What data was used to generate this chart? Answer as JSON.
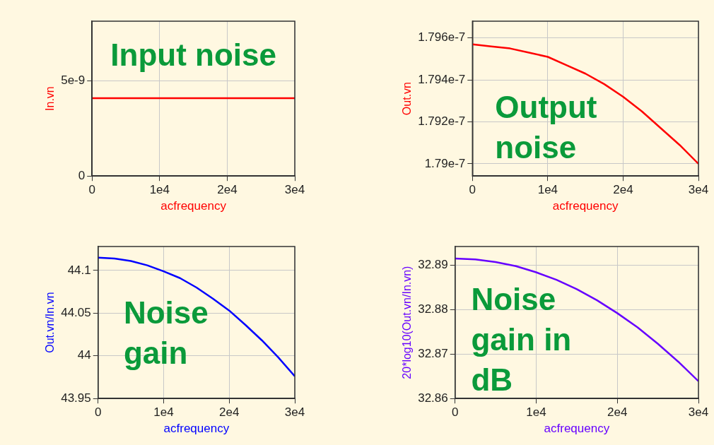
{
  "chart_data": [
    {
      "type": "line",
      "xlabel": "acfrequency",
      "ylabel": "In.vn",
      "annotations": [
        "Input noise"
      ],
      "x": [
        0,
        30000
      ],
      "series": [
        {
          "color": "#ff0000",
          "values": [
            4.1e-09,
            4.1e-09
          ]
        }
      ],
      "xlim": [
        0,
        30000
      ],
      "xticks": [
        {
          "value": 0,
          "label": "0"
        },
        {
          "value": 10000,
          "label": "1e4"
        },
        {
          "value": 20000,
          "label": "2e4"
        },
        {
          "value": 30000,
          "label": "3e4"
        }
      ],
      "ylim": [
        0,
        8.15e-09
      ],
      "yticks": [
        0,
        {
          "value": 5e-09,
          "label": "5e-9"
        }
      ],
      "grid": true,
      "marker": "none"
    },
    {
      "type": "line",
      "xlabel": "acfrequency",
      "ylabel": "Out.vn",
      "annotations": [
        "Output noise"
      ],
      "x": [
        0,
        2500,
        5000,
        7500,
        10000,
        12500,
        15000,
        17500,
        20000,
        22500,
        25000,
        27500,
        30000
      ],
      "series": [
        {
          "color": "#ff0000",
          "values": [
            1.7957e-07,
            1.7956e-07,
            1.7955e-07,
            1.7953e-07,
            1.7951e-07,
            1.7947e-07,
            1.7943e-07,
            1.7938e-07,
            1.7932e-07,
            1.7925e-07,
            1.7917e-07,
            1.7909e-07,
            1.79e-07
          ]
        }
      ],
      "xlim": [
        0,
        30000
      ],
      "xticks": [
        {
          "value": 0,
          "label": "0"
        },
        {
          "value": 10000,
          "label": "1e4"
        },
        {
          "value": 20000,
          "label": "2e4"
        },
        {
          "value": 30000,
          "label": "3e4"
        }
      ],
      "ylim": [
        1.78942e-07,
        1.7968e-07
      ],
      "yticks": [
        {
          "value": 1.79e-07,
          "label": "1.79e-7"
        },
        {
          "value": 1.792e-07,
          "label": "1.792e-7"
        },
        {
          "value": 1.794e-07,
          "label": "1.794e-7"
        },
        {
          "value": 1.796e-07,
          "label": "1.796e-7"
        }
      ],
      "grid": true,
      "marker": "none"
    },
    {
      "type": "line",
      "xlabel": "acfrequency",
      "ylabel": "Out.vn/In.vn",
      "annotations": [
        "Noise gain"
      ],
      "x": [
        0,
        2500,
        5000,
        7500,
        10000,
        12500,
        15000,
        17500,
        20000,
        22500,
        25000,
        27500,
        30000
      ],
      "series": [
        {
          "color": "#0000ff",
          "values": [
            44.115,
            44.114,
            44.111,
            44.106,
            44.099,
            44.091,
            44.08,
            44.067,
            44.053,
            44.036,
            44.018,
            43.998,
            43.976
          ]
        }
      ],
      "xlim": [
        0,
        30000
      ],
      "xticks": [
        {
          "value": 0,
          "label": "0"
        },
        {
          "value": 10000,
          "label": "1e4"
        },
        {
          "value": 20000,
          "label": "2e4"
        },
        {
          "value": 30000,
          "label": "3e4"
        }
      ],
      "ylim": [
        43.95,
        44.128
      ],
      "yticks": [
        43.95,
        44,
        44.05,
        44.1
      ],
      "grid": true,
      "marker": "none"
    },
    {
      "type": "line",
      "xlabel": "acfrequency",
      "ylabel": "20*log10(Out.vn/In.vn)",
      "annotations": [
        "Noise gain in dB"
      ],
      "x": [
        0,
        2500,
        5000,
        7500,
        10000,
        12500,
        15000,
        17500,
        20000,
        22500,
        25000,
        27500,
        30000
      ],
      "series": [
        {
          "color": "#6600ff",
          "values": [
            32.8915,
            32.8913,
            32.8907,
            32.8898,
            32.8884,
            32.8867,
            32.8846,
            32.8821,
            32.8792,
            32.876,
            32.8723,
            32.8683,
            32.8639
          ]
        }
      ],
      "xlim": [
        0,
        30000
      ],
      "xticks": [
        {
          "value": 0,
          "label": "0"
        },
        {
          "value": 10000,
          "label": "1e4"
        },
        {
          "value": 20000,
          "label": "2e4"
        },
        {
          "value": 30000,
          "label": "3e4"
        }
      ],
      "ylim": [
        32.86,
        32.8942
      ],
      "yticks": [
        32.86,
        32.87,
        32.88,
        32.89
      ],
      "grid": true,
      "marker": "none"
    }
  ]
}
